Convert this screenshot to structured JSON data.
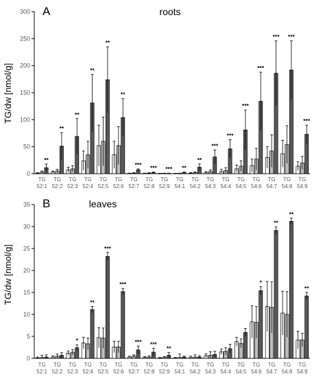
{
  "chart_data": [
    {
      "type": "bar",
      "panel_letter": "A",
      "title": "roots",
      "ylabel": "TG/dw [nmol/g]",
      "ylim": [
        0,
        300
      ],
      "yticks": [
        0,
        50,
        100,
        150,
        200,
        250,
        300
      ],
      "grid": false,
      "categories": [
        [
          "TG",
          "52:1"
        ],
        [
          "TG",
          "52:2"
        ],
        [
          "TG",
          "52:3"
        ],
        [
          "TG",
          "52:4"
        ],
        [
          "TG",
          "52:5"
        ],
        [
          "TG",
          "52:6"
        ],
        [
          "TG",
          "52:7"
        ],
        [
          "TG",
          "52:8"
        ],
        [
          "TG",
          "52:9"
        ],
        [
          "TG",
          "54:1"
        ],
        [
          "TG",
          "54:2"
        ],
        [
          "TG",
          "54:3"
        ],
        [
          "TG",
          "54:4"
        ],
        [
          "TG",
          "54:5"
        ],
        [
          "TG",
          "54:6"
        ],
        [
          "TG",
          "54:7"
        ],
        [
          "TG",
          "54:8"
        ],
        [
          "TG",
          "54:9"
        ]
      ],
      "series": [
        {
          "values": [
            1,
            3,
            7,
            24,
            52,
            35,
            0.5,
            0.5,
            0.3,
            0.3,
            1,
            2,
            4,
            9,
            15,
            30,
            37,
            14
          ],
          "errors": [
            1,
            2,
            5,
            18,
            38,
            25,
            0.5,
            0.5,
            0.3,
            0.3,
            1,
            2,
            4,
            7,
            12,
            20,
            25,
            8
          ],
          "color": "#ffffff"
        },
        {
          "values": [
            3,
            5,
            9,
            35,
            60,
            52,
            1,
            1,
            0.5,
            0.5,
            2,
            4,
            6,
            14,
            27,
            42,
            54,
            20
          ],
          "errors": [
            2,
            3,
            6,
            25,
            45,
            35,
            1,
            1,
            0.5,
            0.5,
            1.5,
            3,
            5,
            10,
            20,
            30,
            35,
            12
          ],
          "color": "#bfbfbf"
        },
        {
          "values": [
            11,
            51,
            69,
            131,
            174,
            104,
            7,
            2,
            0.5,
            2,
            12,
            31,
            46,
            81,
            134,
            186,
            192,
            73
          ],
          "errors": [
            7,
            25,
            33,
            53,
            61,
            35,
            2,
            1,
            0.5,
            1,
            6,
            13,
            17,
            37,
            54,
            60,
            54,
            17
          ],
          "color": "#595959"
        }
      ],
      "significance": [
        "**",
        "**",
        "**",
        "**",
        "**",
        "**",
        "***",
        "***",
        "***",
        "**",
        "**",
        "***",
        "***",
        "***",
        "***",
        "***",
        "***",
        "***"
      ]
    },
    {
      "type": "bar",
      "panel_letter": "B",
      "title": "leaves",
      "ylabel": "TG/dw [nmol/g]",
      "ylim": [
        0,
        35
      ],
      "yticks": [
        0,
        5,
        10,
        15,
        20,
        25,
        30,
        35
      ],
      "grid": false,
      "categories": [
        [
          "TG",
          "52:1"
        ],
        [
          "TG",
          "52:2"
        ],
        [
          "TG",
          "52:3"
        ],
        [
          "TG",
          "52:4"
        ],
        [
          "TG",
          "52:5"
        ],
        [
          "TG",
          "52:6"
        ],
        [
          "TG",
          "52:7"
        ],
        [
          "TG",
          "52:8"
        ],
        [
          "TG",
          "52:9"
        ],
        [
          "TG",
          "54:1"
        ],
        [
          "TG",
          "54:2"
        ],
        [
          "TG",
          "54:3"
        ],
        [
          "TG",
          "54:4"
        ],
        [
          "TG",
          "54:5"
        ],
        [
          "TG",
          "54:6"
        ],
        [
          "TG",
          "54:7"
        ],
        [
          "TG",
          "54:8"
        ],
        [
          "TG",
          "54:9"
        ]
      ],
      "series": [
        {
          "values": [
            0.1,
            0.3,
            1.2,
            3.5,
            4.7,
            2.6,
            0.3,
            0.2,
            0.1,
            0.1,
            0.2,
            0.6,
            1.5,
            3.8,
            8.3,
            11.8,
            10.3,
            4.2
          ],
          "errors": [
            0.2,
            0.3,
            0.5,
            1.3,
            2.3,
            1.3,
            0.2,
            0.2,
            0.1,
            0.1,
            0.3,
            0.4,
            0.6,
            1.0,
            3.7,
            5.7,
            5.0,
            2.0
          ],
          "color": "#ffffff"
        },
        {
          "values": [
            0.2,
            0.5,
            1.4,
            3.3,
            4.6,
            2.6,
            0.5,
            0.3,
            0.2,
            0.2,
            0.3,
            0.7,
            1.6,
            3.4,
            8.2,
            11.6,
            10.0,
            4.2
          ],
          "errors": [
            0.5,
            0.5,
            0.6,
            1.3,
            2.3,
            1.3,
            0.3,
            0.3,
            0.2,
            0.8,
            0.5,
            0.8,
            0.8,
            1.0,
            3.6,
            5.8,
            5.2,
            1.5
          ],
          "color": "#bfbfbf"
        },
        {
          "values": [
            0.3,
            0.7,
            2.4,
            11.1,
            23.2,
            15.2,
            1.9,
            1.4,
            0.7,
            0.3,
            0.3,
            0.9,
            2.2,
            5.9,
            15.4,
            29.1,
            31.2,
            14.2
          ],
          "errors": [
            0.5,
            0.6,
            0.7,
            0.7,
            0.9,
            0.7,
            0.9,
            0.9,
            0.6,
            0.2,
            0.3,
            0.7,
            1.0,
            0.9,
            0.9,
            0.8,
            0.7,
            0.8
          ],
          "color": "#595959"
        }
      ],
      "significance": [
        "",
        "",
        "*",
        "**",
        "***",
        "***",
        "***",
        "***",
        "**",
        "",
        "",
        "",
        "",
        "",
        "*",
        "**",
        "**",
        "**"
      ]
    }
  ]
}
